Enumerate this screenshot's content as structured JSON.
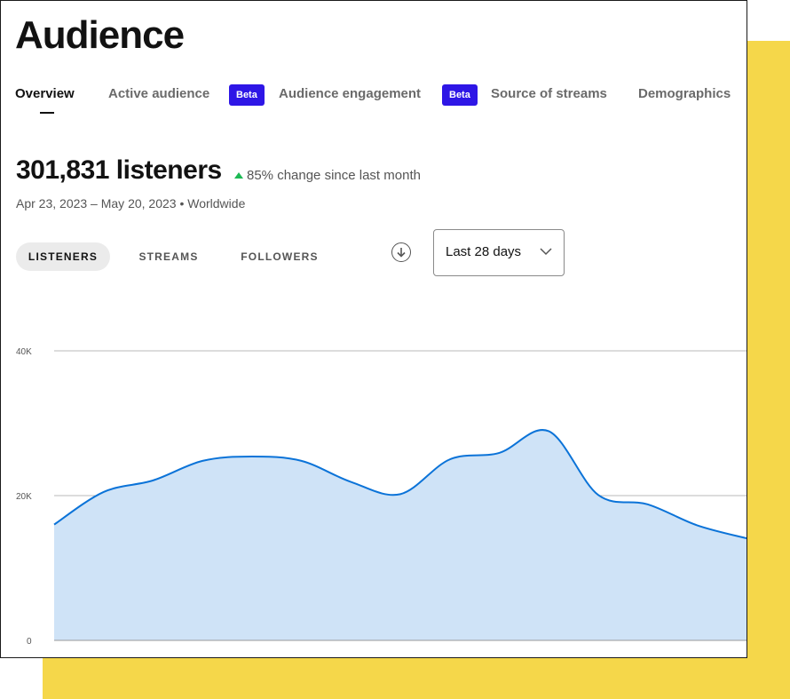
{
  "page": {
    "title": "Audience"
  },
  "tabs": [
    {
      "label": "Overview",
      "active": true
    },
    {
      "label": "Active audience",
      "badge": "Beta"
    },
    {
      "label": "Audience engagement",
      "badge": "Beta"
    },
    {
      "label": "Source of streams"
    },
    {
      "label": "Demographics"
    }
  ],
  "summary": {
    "listeners": "301,831 listeners",
    "change": "85% change since last month",
    "range": "Apr 23, 2023 – May 20, 2023 • Worldwide"
  },
  "metric_pills": {
    "listeners": "LISTENERS",
    "streams": "STREAMS",
    "followers": "FOLLOWERS"
  },
  "controls": {
    "period": "Last 28 days"
  },
  "colors": {
    "accent_beta": "#2e16e6",
    "line": "#0b73d8",
    "area": "#cfe3f7",
    "up": "#1db954",
    "frame": "#f5d74a"
  },
  "chart_data": {
    "type": "area",
    "ylim": [
      0,
      40000
    ],
    "yticks": [
      {
        "value": 0,
        "label": "0"
      },
      {
        "value": 20000,
        "label": "20K"
      },
      {
        "value": 40000,
        "label": "40K"
      }
    ],
    "x": [
      0,
      1,
      2,
      3,
      4,
      5,
      6,
      7,
      8,
      9,
      10,
      11,
      12,
      13,
      14
    ],
    "values": [
      16000,
      20500,
      22100,
      24800,
      25400,
      24800,
      21900,
      20200,
      25000,
      25900,
      28900,
      20100,
      18800,
      15900,
      14100
    ],
    "grid": true
  }
}
